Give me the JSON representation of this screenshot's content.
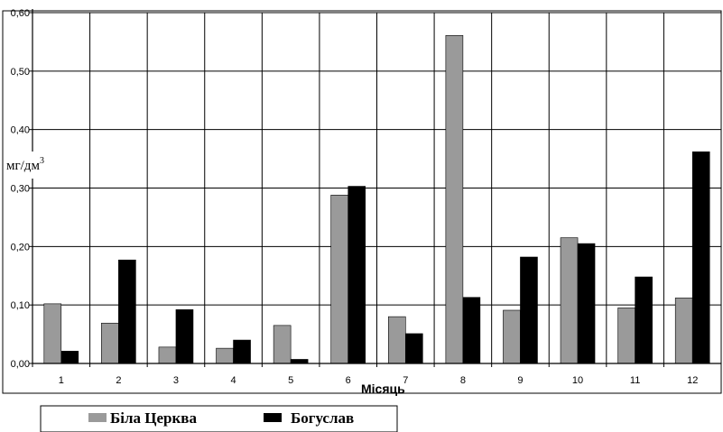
{
  "chart_data": {
    "type": "bar",
    "categories": [
      "1",
      "2",
      "3",
      "4",
      "5",
      "6",
      "7",
      "8",
      "9",
      "10",
      "11",
      "12"
    ],
    "series": [
      {
        "name": "Біла Церква",
        "color": "#9a9a9a",
        "values": [
          0.102,
          0.069,
          0.028,
          0.026,
          0.065,
          0.288,
          0.08,
          0.561,
          0.091,
          0.215,
          0.095,
          0.112
        ]
      },
      {
        "name": "Богуслав",
        "color": "#000000",
        "values": [
          0.021,
          0.177,
          0.092,
          0.04,
          0.007,
          0.303,
          0.051,
          0.113,
          0.182,
          0.205,
          0.148,
          0.362
        ]
      }
    ],
    "yticks": [
      "0,00",
      "0,10",
      "0,20",
      "0,30",
      "0,40",
      "0,50",
      "0,60"
    ],
    "ylim": [
      0,
      0.6
    ],
    "xlabel": "Місяць",
    "ylabel": "мг/дм",
    "ylabel_sup": "3",
    "grid": true,
    "legend_position": "bottom-left"
  }
}
